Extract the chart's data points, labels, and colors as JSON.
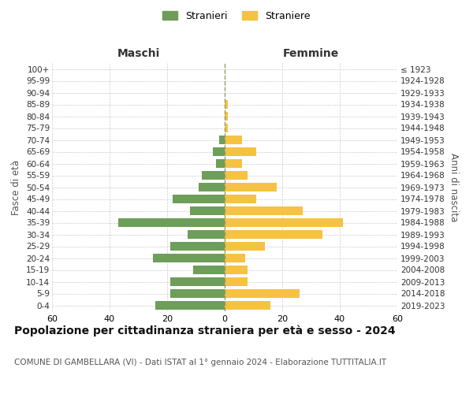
{
  "age_groups": [
    "0-4",
    "5-9",
    "10-14",
    "15-19",
    "20-24",
    "25-29",
    "30-34",
    "35-39",
    "40-44",
    "45-49",
    "50-54",
    "55-59",
    "60-64",
    "65-69",
    "70-74",
    "75-79",
    "80-84",
    "85-89",
    "90-94",
    "95-99",
    "100+"
  ],
  "birth_years": [
    "2019-2023",
    "2014-2018",
    "2009-2013",
    "2004-2008",
    "1999-2003",
    "1994-1998",
    "1989-1993",
    "1984-1988",
    "1979-1983",
    "1974-1978",
    "1969-1973",
    "1964-1968",
    "1959-1963",
    "1954-1958",
    "1949-1953",
    "1944-1948",
    "1939-1943",
    "1934-1938",
    "1929-1933",
    "1924-1928",
    "≤ 1923"
  ],
  "males": [
    24,
    19,
    19,
    11,
    25,
    19,
    13,
    37,
    12,
    18,
    9,
    8,
    3,
    4,
    2,
    0,
    0,
    0,
    0,
    0,
    0
  ],
  "females": [
    16,
    26,
    8,
    8,
    7,
    14,
    34,
    41,
    27,
    11,
    18,
    8,
    6,
    11,
    6,
    1,
    1,
    1,
    0,
    0,
    0
  ],
  "male_color": "#6d9e5a",
  "female_color": "#f5c242",
  "dashed_line_color": "#999966",
  "grid_color": "#cccccc",
  "background_color": "#ffffff",
  "title": "Popolazione per cittadinanza straniera per età e sesso - 2024",
  "subtitle": "COMUNE DI GAMBELLARA (VI) - Dati ISTAT al 1° gennaio 2024 - Elaborazione TUTTITALIA.IT",
  "header_left": "Maschi",
  "header_right": "Femmine",
  "ylabel_left": "Fasce di età",
  "ylabel_right": "Anni di nascita",
  "legend_males": "Stranieri",
  "legend_females": "Straniere",
  "xlim": 60,
  "bar_height": 0.78
}
